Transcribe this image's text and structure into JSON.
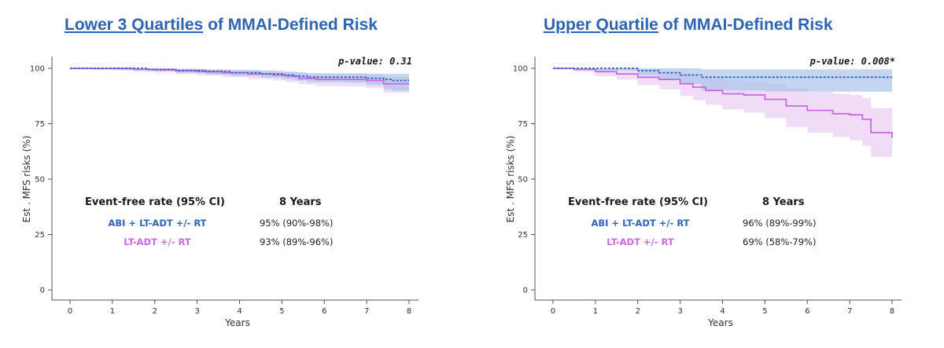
{
  "chart_data": [
    {
      "type": "line",
      "title": {
        "underlined": "Lower 3 Quartiles",
        "rest": " of MMAI-Defined Risk"
      },
      "xlabel": "Years",
      "ylabel": "Est . MFS risks (%)",
      "xlim": [
        0,
        8
      ],
      "ylim": [
        0,
        100
      ],
      "xticks": [
        "0",
        "1",
        "2",
        "3",
        "4",
        "5",
        "6",
        "7",
        "8"
      ],
      "yticks": [
        "0",
        "25",
        "50",
        "75",
        "100"
      ],
      "pvalue_text": "p-value: 0.31",
      "colors": {
        "abi": "#3b5fc8",
        "adt": "#c86ae0",
        "abi_band": "#a9c3e8",
        "adt_band": "#ecd0f3"
      },
      "series": [
        {
          "name": "ABI + LT-ADT +/- RT",
          "style": "dotted",
          "x": [
            0,
            0.6,
            1.2,
            1.8,
            2.5,
            3.2,
            3.8,
            4.5,
            5.0,
            5.3,
            5.6,
            6.5,
            7.0,
            7.4,
            7.6,
            8.0
          ],
          "y": [
            100,
            100,
            100,
            99.5,
            99,
            98.5,
            98,
            97.5,
            97,
            96.5,
            96,
            96,
            95.5,
            95,
            94.5,
            94.5
          ],
          "ci_lower": [
            100,
            99.5,
            99.2,
            98.8,
            98,
            97.2,
            96.5,
            95.8,
            95.2,
            94.5,
            93.8,
            93.5,
            92.5,
            90.5,
            90,
            90
          ],
          "ci_upper": [
            100,
            100,
            100,
            100,
            99.8,
            99.5,
            99.2,
            98.8,
            98.5,
            98.2,
            97.8,
            97.8,
            97.6,
            97.5,
            97.5,
            97.5
          ]
        },
        {
          "name": "LT-ADT +/- RT",
          "style": "solid",
          "x": [
            0,
            0.5,
            1.0,
            1.5,
            2.0,
            2.5,
            3.0,
            3.6,
            4.2,
            4.8,
            5.1,
            5.4,
            5.8,
            6.5,
            7.0,
            7.4,
            8.0
          ],
          "y": [
            100,
            100,
            100,
            99.5,
            99.3,
            99,
            98.5,
            98,
            97.5,
            97,
            96.5,
            95.5,
            95,
            95,
            94.5,
            93,
            93
          ],
          "ci_lower": [
            99.5,
            99.3,
            99,
            98.5,
            98.2,
            97.5,
            96.8,
            96,
            95.2,
            94.5,
            93.8,
            92.8,
            92,
            91.8,
            91.2,
            89,
            89
          ],
          "ci_upper": [
            100,
            100,
            100,
            100,
            100,
            99.8,
            99.6,
            99.3,
            99,
            98.7,
            98.4,
            97.8,
            97.4,
            97.4,
            97,
            96,
            96
          ]
        }
      ],
      "table": {
        "header_label": "Event-free rate (95% CI)",
        "header_time": "8 Years",
        "rows": [
          {
            "name": "ABI + LT-ADT +/- RT",
            "value": "95% (90%-98%)"
          },
          {
            "name": "LT-ADT +/- RT",
            "value": "93% (89%-96%)"
          }
        ]
      }
    },
    {
      "type": "line",
      "title": {
        "underlined": "Upper Quartile",
        "rest": " of MMAI-Defined Risk"
      },
      "xlabel": "Years",
      "ylabel": "Est . MFS risks (%)",
      "xlim": [
        0,
        8
      ],
      "ylim": [
        0,
        100
      ],
      "xticks": [
        "0",
        "1",
        "2",
        "3",
        "4",
        "5",
        "6",
        "7",
        "8"
      ],
      "yticks": [
        "0",
        "25",
        "50",
        "75",
        "100"
      ],
      "pvalue_text": "p-value: 0.008*",
      "colors": {
        "abi": "#3b5fc8",
        "adt": "#c86ae0",
        "abi_band": "#a9c3e8",
        "adt_band": "#ecd0f3"
      },
      "series": [
        {
          "name": "ABI + LT-ADT +/- RT",
          "style": "dotted",
          "x": [
            0,
            1.0,
            2.0,
            2.5,
            3.0,
            3.5,
            5.0,
            6.0,
            7.0,
            8.0
          ],
          "y": [
            100,
            100,
            99,
            98,
            97,
            96,
            96,
            96,
            96,
            96
          ],
          "ci_lower": [
            100,
            99,
            97,
            95,
            93,
            90,
            89.5,
            89.5,
            89.5,
            89.5
          ],
          "ci_upper": [
            100,
            100,
            100,
            100,
            100,
            99.5,
            99.5,
            99.5,
            99.5,
            99.5
          ]
        },
        {
          "name": "LT-ADT +/- RT",
          "style": "solid",
          "x": [
            0,
            0.5,
            1.0,
            1.5,
            2.0,
            2.5,
            3.0,
            3.3,
            3.6,
            4.0,
            4.5,
            5.0,
            5.5,
            6.0,
            6.6,
            7.0,
            7.3,
            7.5,
            8.0
          ],
          "y": [
            100,
            99.5,
            98.5,
            97.5,
            96,
            95,
            93,
            91.5,
            90,
            88.5,
            88,
            86,
            83,
            81,
            79.5,
            79,
            77,
            71,
            68.5
          ],
          "ci_lower": [
            99.5,
            98.5,
            96.5,
            95,
            92.5,
            90.5,
            87.5,
            85.5,
            83.5,
            81.5,
            80,
            77.5,
            73.5,
            71,
            69,
            67.5,
            65,
            60,
            57.5
          ],
          "ci_upper": [
            100,
            100,
            100,
            100,
            99,
            98.5,
            97.5,
            96.5,
            95.5,
            94.5,
            94,
            93,
            91,
            89.5,
            88.5,
            88,
            86.5,
            82,
            79.5
          ]
        }
      ],
      "table": {
        "header_label": "Event-free rate (95% CI)",
        "header_time": "8 Years",
        "rows": [
          {
            "name": "ABI + LT-ADT +/- RT",
            "value": "96% (89%-99%)"
          },
          {
            "name": "LT-ADT +/- RT",
            "value": "69% (58%-79%)"
          }
        ]
      }
    }
  ]
}
